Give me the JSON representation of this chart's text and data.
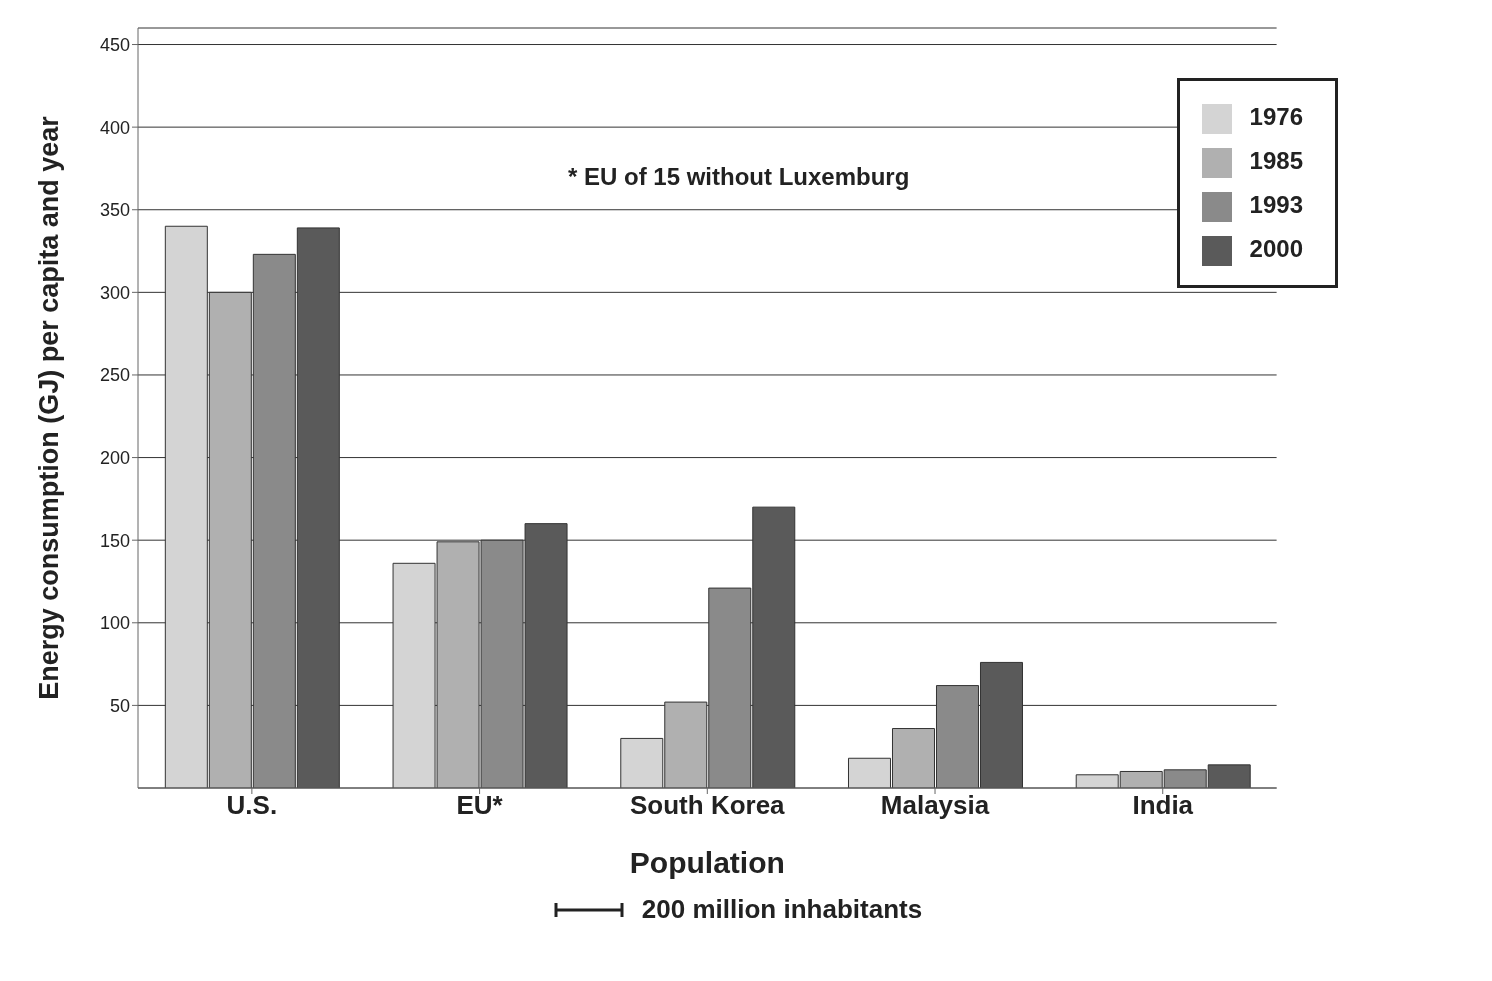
{
  "chart_data": {
    "type": "bar",
    "categories": [
      "U.S.",
      "EU*",
      "South Korea",
      "Malaysia",
      "India"
    ],
    "series": [
      {
        "name": "1976",
        "color": "#d4d4d4",
        "values": [
          340,
          136,
          30,
          18,
          8
        ]
      },
      {
        "name": "1985",
        "color": "#b0b0b0",
        "values": [
          300,
          149,
          52,
          36,
          10
        ]
      },
      {
        "name": "1993",
        "color": "#8a8a8a",
        "values": [
          323,
          150,
          121,
          62,
          11
        ]
      },
      {
        "name": "2000",
        "color": "#5a5a5a",
        "values": [
          339,
          160,
          170,
          76,
          14
        ]
      }
    ],
    "xlabel": "Population",
    "ylabel": "Energy consumption (GJ) per capita and year",
    "ylim": [
      0,
      460
    ],
    "yticks": [
      50,
      100,
      150,
      200,
      250,
      300,
      350,
      400,
      450
    ],
    "grid": "y",
    "legend": "top right",
    "annotations": [
      "* EU of 15 without Luxemburg",
      "200 million inhabitants"
    ]
  }
}
